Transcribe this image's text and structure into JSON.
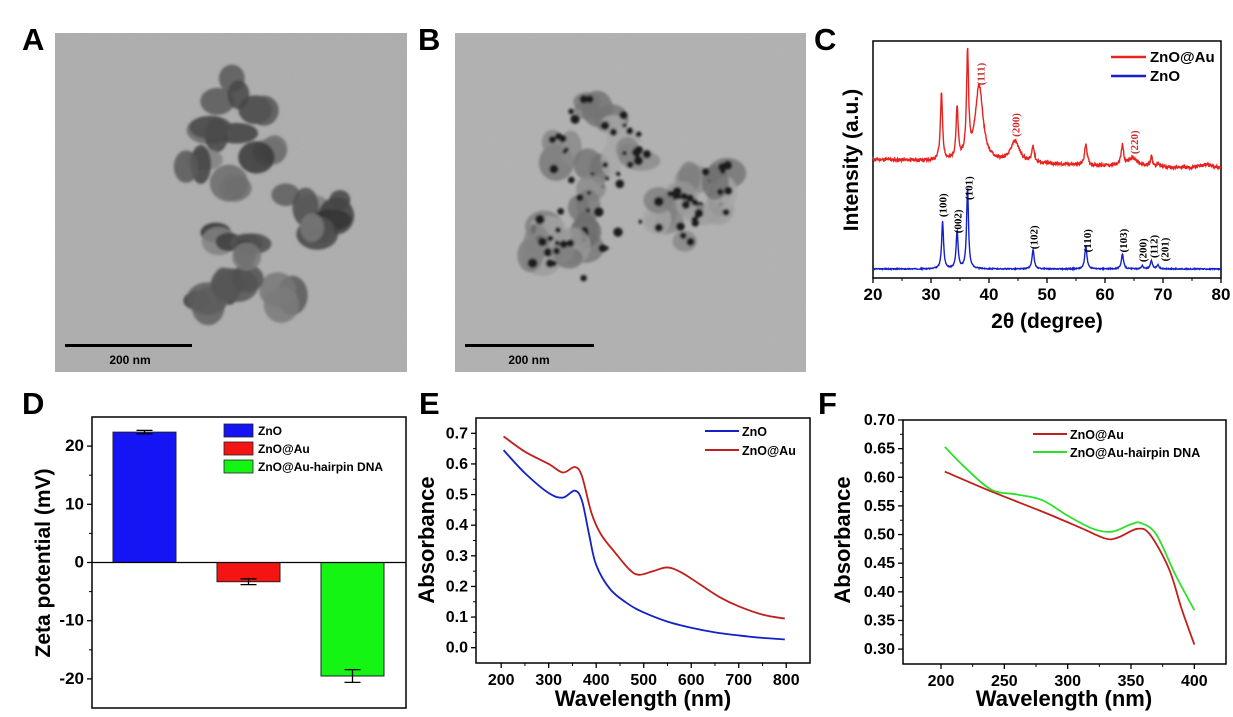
{
  "panel_labels": [
    "A",
    "B",
    "C",
    "D",
    "E",
    "F"
  ],
  "tem_images": [
    {
      "scale_bar": "200 nm"
    },
    {
      "scale_bar": "200 nm"
    }
  ],
  "chart_data": [
    {
      "type": "line",
      "panel": "C",
      "xlabel": "2θ (degree)",
      "ylabel": "Intensity (a.u.)",
      "xlim": [
        20,
        80
      ],
      "xticks": [
        "20",
        "30",
        "40",
        "50",
        "60",
        "70",
        "80"
      ],
      "yticks": [],
      "legend": "top-right",
      "grid": false,
      "series": [
        {
          "name": "ZnO@Au",
          "color": "#e8221f",
          "label_color": "#c8302c",
          "baseline": [
            50,
            46
          ],
          "peaks": [
            [
              31.8,
              28,
              0.22
            ],
            [
              34.5,
              21.5,
              0.22
            ],
            [
              36.3,
              43,
              0.22
            ],
            [
              38.3,
              32,
              0.8
            ],
            [
              44.5,
              9,
              0.9
            ],
            [
              47.6,
              7,
              0.25
            ],
            [
              56.7,
              9,
              0.25
            ],
            [
              63.0,
              8.5,
              0.25
            ],
            [
              64.8,
              3.5,
              0.9
            ],
            [
              68.0,
              4,
              0.25
            ],
            [
              69.2,
              1.5,
              0.25
            ],
            [
              77.6,
              1.7,
              1.4
            ]
          ],
          "peak_labels": [
            {
              "text": "(111)",
              "x": 38.5
            },
            {
              "text": "(200)",
              "x": 44.6
            },
            {
              "text": "(220)",
              "x": 65.0
            }
          ]
        },
        {
          "name": "ZnO",
          "color": "#1420c8",
          "label_color": "#000000",
          "baseline": [
            3.8,
            3.8
          ],
          "peaks": [
            [
              32.0,
              20,
              0.2
            ],
            [
              34.5,
              16,
              0.2
            ],
            [
              36.3,
              34,
              0.2
            ],
            [
              47.6,
              8,
              0.22
            ],
            [
              56.7,
              9.7,
              0.22
            ],
            [
              63.0,
              6.3,
              0.22
            ],
            [
              66.4,
              1.3,
              0.22
            ],
            [
              68.0,
              3.4,
              0.22
            ],
            [
              69.1,
              1.7,
              0.22
            ]
          ],
          "peak_labels": [
            {
              "text": "(100)",
              "x": 32.0
            },
            {
              "text": "(002)",
              "x": 34.6
            },
            {
              "text": "(101)",
              "x": 36.4
            },
            {
              "text": "(102)",
              "x": 47.7
            },
            {
              "text": "(110)",
              "x": 56.9
            },
            {
              "text": "(103)",
              "x": 63.1
            },
            {
              "text": "(200)",
              "x": 66.5
            },
            {
              "text": "(112)",
              "x": 68.1
            },
            {
              "text": "(201)",
              "x": 69.2
            }
          ]
        }
      ]
    },
    {
      "type": "bar",
      "panel": "D",
      "ylabel": "Zeta potential (mV)",
      "categories": [
        "ZnO",
        "ZnO@Au",
        "ZnO@Au-hairpin DNA"
      ],
      "values": [
        22.4,
        -3.3,
        -19.5
      ],
      "errors": [
        0.3,
        0.5,
        1.1
      ],
      "colors": [
        "#1414f5",
        "#f51414",
        "#14f514"
      ],
      "ylim": [
        -25,
        25
      ],
      "yticks": [
        "-20",
        "-10",
        "0",
        "10",
        "20"
      ],
      "legend": "top-right"
    },
    {
      "type": "line",
      "panel": "E",
      "xlabel": "Wavelength (nm)",
      "ylabel": "Absorbance",
      "xlim": [
        147,
        850
      ],
      "ylim": [
        -0.05,
        0.75
      ],
      "xticks": [
        "200",
        "300",
        "400",
        "500",
        "600",
        "700",
        "800"
      ],
      "yticks": [
        "0.0",
        "0.1",
        "0.2",
        "0.3",
        "0.4",
        "0.5",
        "0.6",
        "0.7"
      ],
      "legend": "top-right",
      "series": [
        {
          "name": "ZnO",
          "color": "#1420c8",
          "x": [
            205,
            250,
            300,
            330,
            355,
            370,
            385,
            400,
            430,
            470,
            500,
            550,
            600,
            650,
            700,
            750,
            797
          ],
          "y": [
            0.645,
            0.57,
            0.505,
            0.49,
            0.513,
            0.48,
            0.37,
            0.27,
            0.19,
            0.14,
            0.115,
            0.085,
            0.065,
            0.05,
            0.04,
            0.032,
            0.027
          ]
        },
        {
          "name": "ZnO@Au",
          "color": "#c0201c",
          "x": [
            205,
            250,
            300,
            330,
            355,
            370,
            390,
            410,
            440,
            470,
            490,
            520,
            550,
            580,
            620,
            660,
            700,
            750,
            797
          ],
          "y": [
            0.69,
            0.64,
            0.6,
            0.572,
            0.59,
            0.56,
            0.44,
            0.37,
            0.31,
            0.255,
            0.238,
            0.25,
            0.262,
            0.245,
            0.205,
            0.165,
            0.135,
            0.108,
            0.095
          ]
        }
      ]
    },
    {
      "type": "line",
      "panel": "F",
      "xlabel": "Wavelength (nm)",
      "ylabel": "Absorbance",
      "xlim": [
        170,
        425
      ],
      "ylim": [
        0.274,
        0.7
      ],
      "xticks": [
        "200",
        "250",
        "300",
        "350",
        "400"
      ],
      "yticks": [
        "0.30",
        "0.35",
        "0.40",
        "0.45",
        "0.50",
        "0.55",
        "0.60",
        "0.65",
        "0.70"
      ],
      "legend": "top-right",
      "series": [
        {
          "name": "ZnO@Au",
          "color": "#c0201c",
          "x": [
            203,
            240,
            280,
            310,
            330,
            340,
            355,
            365,
            380,
            390,
            400
          ],
          "y": [
            0.61,
            0.575,
            0.54,
            0.512,
            0.493,
            0.495,
            0.51,
            0.5,
            0.44,
            0.37,
            0.308
          ]
        },
        {
          "name": "ZnO@Au-hairpin DNA",
          "color": "#2ee02e",
          "x": [
            203,
            220,
            240,
            260,
            280,
            300,
            320,
            335,
            350,
            358,
            370,
            385,
            400
          ],
          "y": [
            0.653,
            0.615,
            0.578,
            0.57,
            0.56,
            0.533,
            0.51,
            0.505,
            0.518,
            0.52,
            0.5,
            0.43,
            0.368
          ]
        }
      ]
    }
  ]
}
